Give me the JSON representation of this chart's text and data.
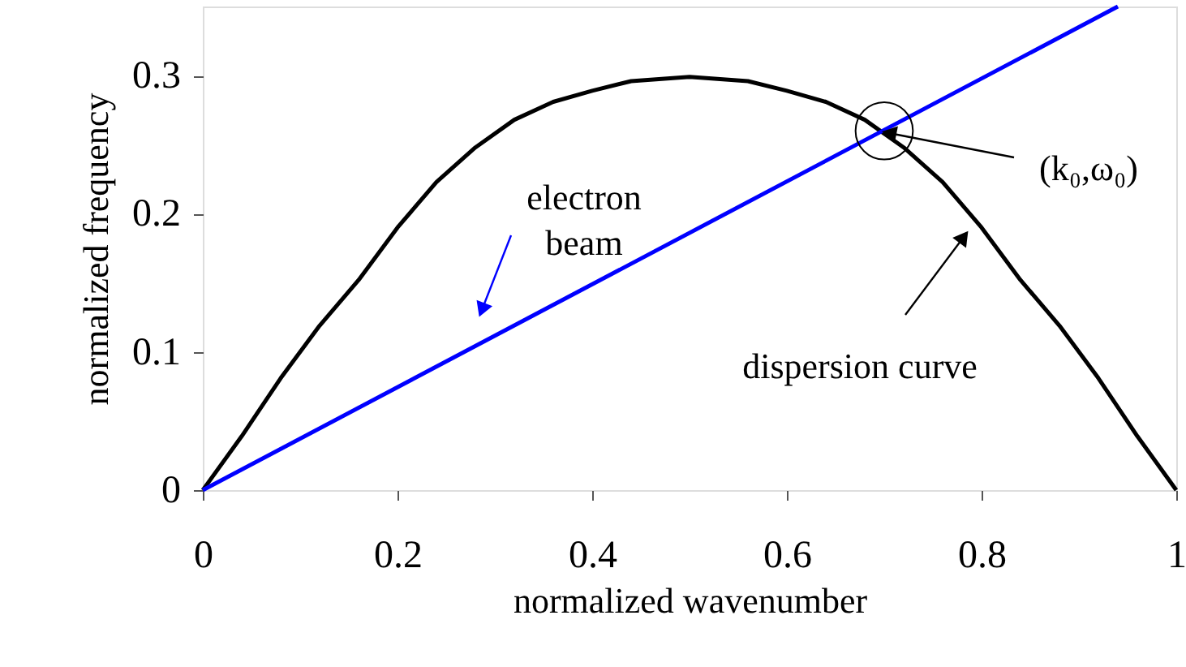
{
  "chart_data": {
    "type": "line",
    "xlabel": "normalized wavenumber",
    "ylabel": "normalized frequency",
    "xlim": [
      0,
      1
    ],
    "ylim": [
      0,
      0.35
    ],
    "xticks": [
      0,
      0.2,
      0.4,
      0.6,
      0.8,
      1
    ],
    "yticks": [
      0,
      0.1,
      0.2,
      0.3
    ],
    "grid": false,
    "marker": "none",
    "line_style": "solid",
    "series": [
      {
        "color": "#000000",
        "x": [
          0,
          0.04,
          0.08,
          0.12,
          0.16,
          0.2,
          0.24,
          0.28,
          0.32,
          0.36,
          0.4,
          0.44,
          0.48,
          0.5,
          0.52,
          0.56,
          0.6,
          0.64,
          0.68,
          0.72,
          0.76,
          0.8,
          0.84,
          0.88,
          0.92,
          0.96,
          1
        ],
        "values": [
          0,
          0.039,
          0.081,
          0.119,
          0.152,
          0.19,
          0.223,
          0.248,
          0.268,
          0.281,
          0.289,
          0.296,
          0.298,
          0.299,
          0.298,
          0.296,
          0.289,
          0.281,
          0.268,
          0.248,
          0.223,
          0.19,
          0.152,
          0.119,
          0.081,
          0.039,
          0
        ]
      },
      {
        "color": "#0000ff",
        "x": [
          0,
          0.94
        ],
        "values": [
          0,
          0.35
        ]
      }
    ],
    "annotations": [
      "electron beam",
      "dispersion curve",
      {
        "text": "(k₀,ω₀)",
        "x": 0.7,
        "y": 0.26
      }
    ]
  }
}
